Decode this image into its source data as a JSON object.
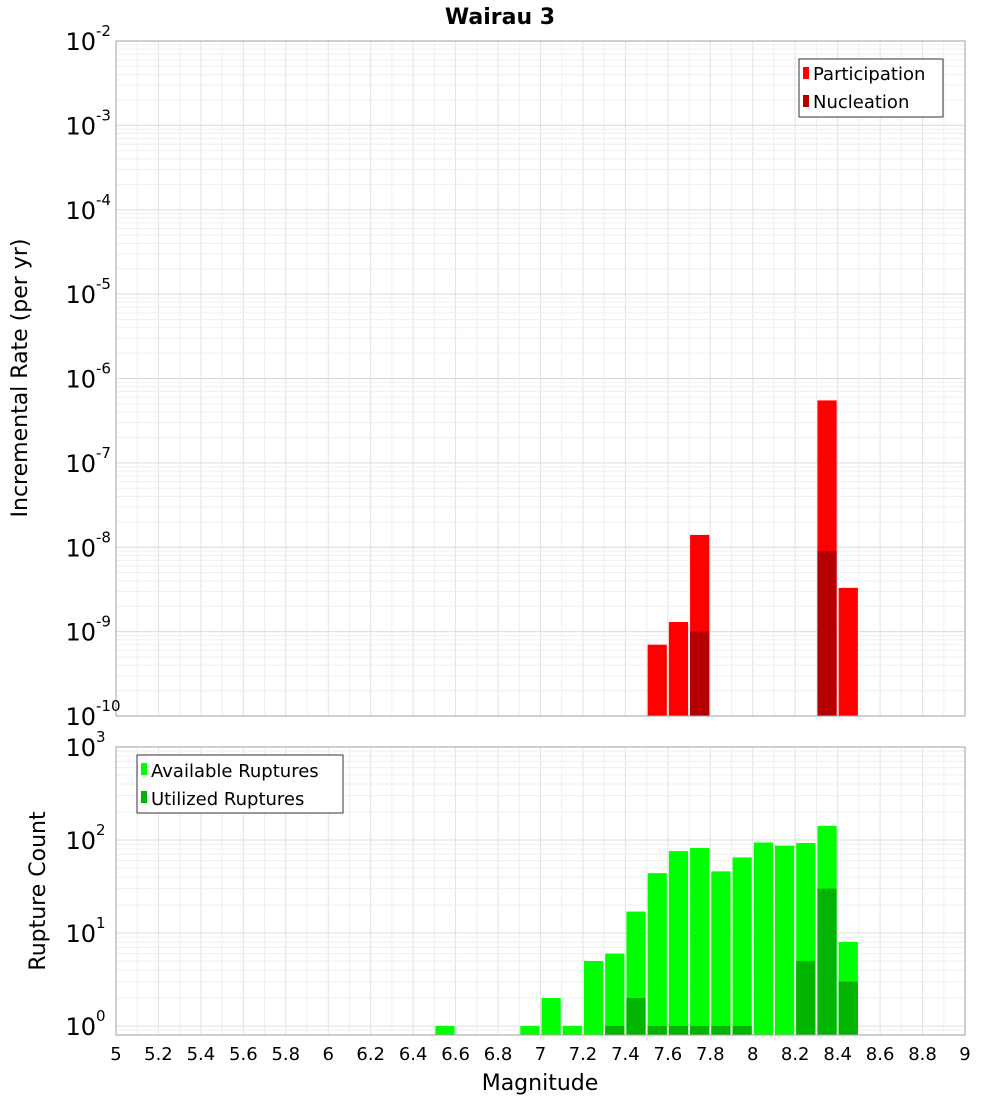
{
  "chart_data": [
    {
      "type": "bar",
      "title": "Wairau 3",
      "xlabel": "",
      "ylabel": "Incremental Rate (per yr)",
      "yscale": "log",
      "ylim": [
        1e-10,
        0.01
      ],
      "xlim": [
        5,
        9
      ],
      "grid": true,
      "legend_position": "top-right",
      "y_tick_labels": [
        {
          "base": "10",
          "exp": "-10"
        },
        {
          "base": "10",
          "exp": "-9"
        },
        {
          "base": "10",
          "exp": "-8"
        },
        {
          "base": "10",
          "exp": "-7"
        },
        {
          "base": "10",
          "exp": "-6"
        },
        {
          "base": "10",
          "exp": "-5"
        },
        {
          "base": "10",
          "exp": "-4"
        },
        {
          "base": "10",
          "exp": "-3"
        },
        {
          "base": "10",
          "exp": "-2"
        }
      ],
      "bin_width": 0.1,
      "series": [
        {
          "name": "Participation",
          "color": "#ff0000",
          "points": [
            {
              "x": 7.55,
              "y": 7e-10
            },
            {
              "x": 7.65,
              "y": 1.3e-09
            },
            {
              "x": 7.75,
              "y": 1.4e-08
            },
            {
              "x": 8.35,
              "y": 5.5e-07
            },
            {
              "x": 8.45,
              "y": 3.3e-09
            }
          ]
        },
        {
          "name": "Nucleation",
          "color": "#b40000",
          "points": [
            {
              "x": 7.75,
              "y": 1e-09
            },
            {
              "x": 8.35,
              "y": 9e-09
            }
          ]
        }
      ]
    },
    {
      "type": "bar",
      "title": "",
      "xlabel": "Magnitude",
      "ylabel": "Rupture Count",
      "yscale": "log",
      "ylim": [
        0.8,
        1000
      ],
      "xlim": [
        5,
        9
      ],
      "grid": true,
      "legend_position": "top-left",
      "y_tick_labels": [
        {
          "base": "10",
          "exp": "0"
        },
        {
          "base": "10",
          "exp": "1"
        },
        {
          "base": "10",
          "exp": "2"
        },
        {
          "base": "10",
          "exp": "3"
        }
      ],
      "x_tick_labels": [
        "5",
        "5.2",
        "5.4",
        "5.6",
        "5.8",
        "6",
        "6.2",
        "6.4",
        "6.6",
        "6.8",
        "7",
        "7.2",
        "7.4",
        "7.6",
        "7.8",
        "8",
        "8.2",
        "8.4",
        "8.6",
        "8.8",
        "9"
      ],
      "bin_width": 0.1,
      "series": [
        {
          "name": "Available Ruptures",
          "color": "#00ff00",
          "points": [
            {
              "x": 6.55,
              "y": 1
            },
            {
              "x": 6.95,
              "y": 1
            },
            {
              "x": 7.05,
              "y": 2
            },
            {
              "x": 7.15,
              "y": 1
            },
            {
              "x": 7.25,
              "y": 5
            },
            {
              "x": 7.35,
              "y": 6
            },
            {
              "x": 7.45,
              "y": 17
            },
            {
              "x": 7.55,
              "y": 44
            },
            {
              "x": 7.65,
              "y": 76
            },
            {
              "x": 7.75,
              "y": 82
            },
            {
              "x": 7.85,
              "y": 46
            },
            {
              "x": 7.95,
              "y": 65
            },
            {
              "x": 8.05,
              "y": 94
            },
            {
              "x": 8.15,
              "y": 87
            },
            {
              "x": 8.25,
              "y": 93
            },
            {
              "x": 8.35,
              "y": 142
            },
            {
              "x": 8.45,
              "y": 8
            }
          ]
        },
        {
          "name": "Utilized Ruptures",
          "color": "#00b400",
          "points": [
            {
              "x": 7.35,
              "y": 1
            },
            {
              "x": 7.45,
              "y": 2
            },
            {
              "x": 7.55,
              "y": 1
            },
            {
              "x": 7.65,
              "y": 1
            },
            {
              "x": 7.75,
              "y": 1
            },
            {
              "x": 7.85,
              "y": 1
            },
            {
              "x": 7.95,
              "y": 1
            },
            {
              "x": 8.25,
              "y": 5
            },
            {
              "x": 8.35,
              "y": 30
            },
            {
              "x": 8.45,
              "y": 3
            }
          ]
        }
      ]
    }
  ]
}
